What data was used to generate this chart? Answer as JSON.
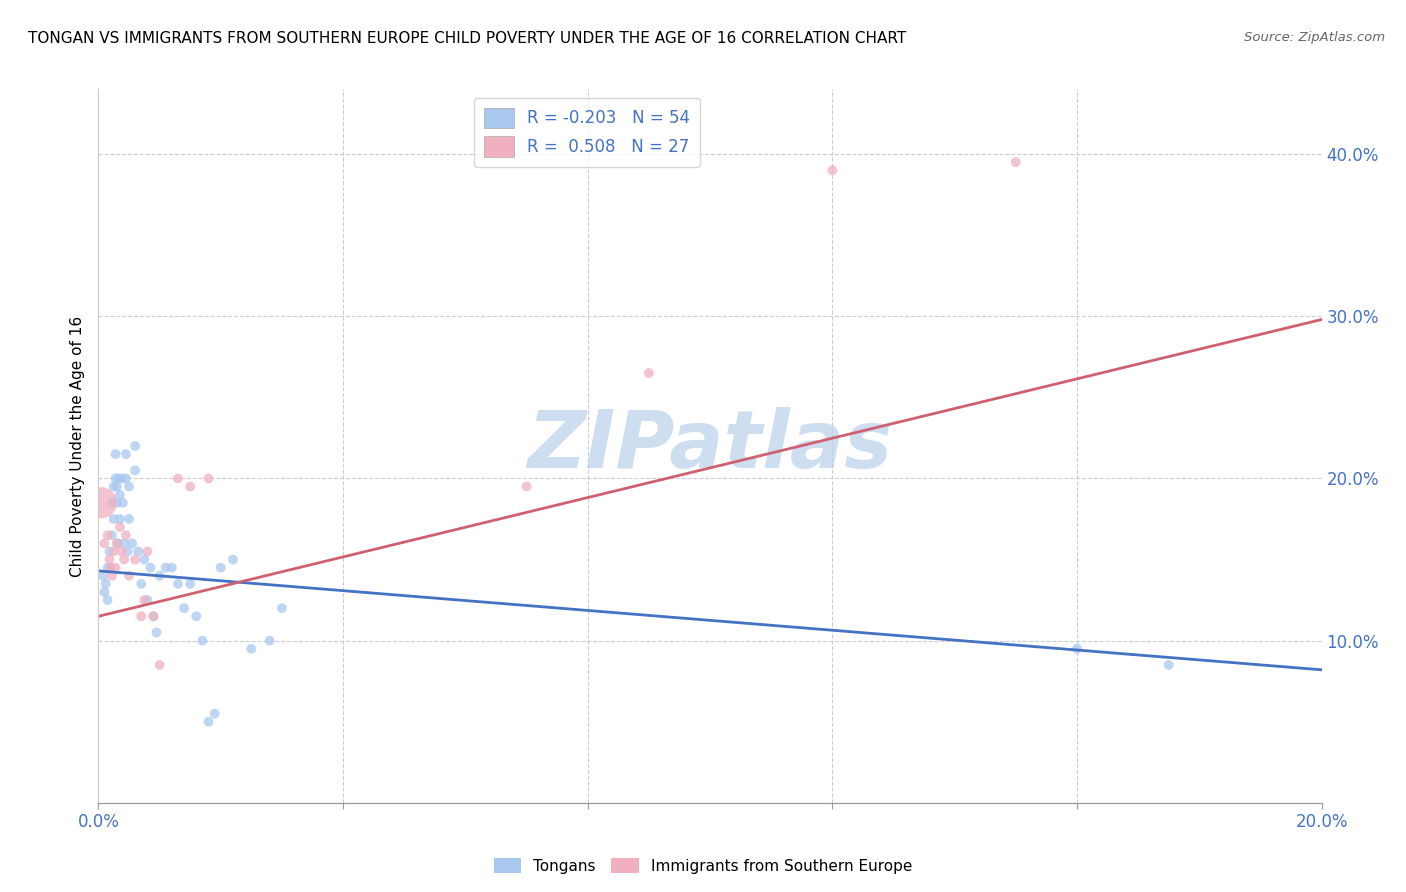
{
  "title": "TONGAN VS IMMIGRANTS FROM SOUTHERN EUROPE CHILD POVERTY UNDER THE AGE OF 16 CORRELATION CHART",
  "source": "Source: ZipAtlas.com",
  "ylabel": "Child Poverty Under the Age of 16",
  "xlim": [
    0.0,
    0.2
  ],
  "ylim": [
    0.0,
    0.44
  ],
  "grid_color": "#cccccc",
  "background_color": "#ffffff",
  "watermark": "ZIPatlas",
  "watermark_color": "#b8d0ea",
  "blue_color": "#a8c8f0",
  "pink_color": "#f0b0c0",
  "blue_line_color": "#4472C4",
  "pink_line_color": "#d06070",
  "legend_R_blue": "-0.203",
  "legend_N_blue": "54",
  "legend_R_pink": "0.508",
  "legend_N_pink": "27",
  "tongans_x": [
    0.0008,
    0.001,
    0.0012,
    0.0015,
    0.0015,
    0.0018,
    0.002,
    0.0022,
    0.0022,
    0.0025,
    0.0025,
    0.0028,
    0.0028,
    0.003,
    0.003,
    0.0032,
    0.0032,
    0.0035,
    0.0035,
    0.0038,
    0.004,
    0.0042,
    0.0045,
    0.0045,
    0.0048,
    0.005,
    0.005,
    0.0055,
    0.006,
    0.006,
    0.0065,
    0.007,
    0.0075,
    0.008,
    0.0085,
    0.009,
    0.0095,
    0.01,
    0.011,
    0.012,
    0.013,
    0.014,
    0.015,
    0.016,
    0.017,
    0.018,
    0.019,
    0.02,
    0.022,
    0.025,
    0.028,
    0.03,
    0.16,
    0.175
  ],
  "tongans_y": [
    0.14,
    0.13,
    0.135,
    0.145,
    0.125,
    0.155,
    0.145,
    0.165,
    0.185,
    0.195,
    0.175,
    0.215,
    0.2,
    0.195,
    0.185,
    0.2,
    0.16,
    0.19,
    0.175,
    0.2,
    0.185,
    0.16,
    0.215,
    0.2,
    0.155,
    0.195,
    0.175,
    0.16,
    0.205,
    0.22,
    0.155,
    0.135,
    0.15,
    0.125,
    0.145,
    0.115,
    0.105,
    0.14,
    0.145,
    0.145,
    0.135,
    0.12,
    0.135,
    0.115,
    0.1,
    0.05,
    0.055,
    0.145,
    0.15,
    0.095,
    0.1,
    0.12,
    0.095,
    0.085
  ],
  "immigrants_x": [
    0.0005,
    0.001,
    0.0015,
    0.0018,
    0.002,
    0.0022,
    0.0025,
    0.0028,
    0.003,
    0.0035,
    0.0038,
    0.0042,
    0.0045,
    0.005,
    0.006,
    0.007,
    0.0075,
    0.008,
    0.009,
    0.01,
    0.013,
    0.015,
    0.018,
    0.07,
    0.09,
    0.12,
    0.15
  ],
  "immigrants_y": [
    0.185,
    0.16,
    0.165,
    0.15,
    0.145,
    0.14,
    0.155,
    0.145,
    0.16,
    0.17,
    0.155,
    0.15,
    0.165,
    0.14,
    0.15,
    0.115,
    0.125,
    0.155,
    0.115,
    0.085,
    0.2,
    0.195,
    0.2,
    0.195,
    0.265,
    0.39,
    0.395
  ],
  "immigrants_size": [
    500,
    50,
    50,
    50,
    50,
    50,
    50,
    50,
    50,
    50,
    50,
    50,
    50,
    50,
    50,
    50,
    50,
    50,
    50,
    50,
    50,
    50,
    50,
    50,
    50,
    50,
    50
  ],
  "blue_trendline_x": [
    0.0,
    0.2
  ],
  "blue_trendline_y": [
    0.143,
    0.082
  ],
  "pink_trendline_x": [
    0.0,
    0.2
  ],
  "pink_trendline_y": [
    0.115,
    0.298
  ]
}
